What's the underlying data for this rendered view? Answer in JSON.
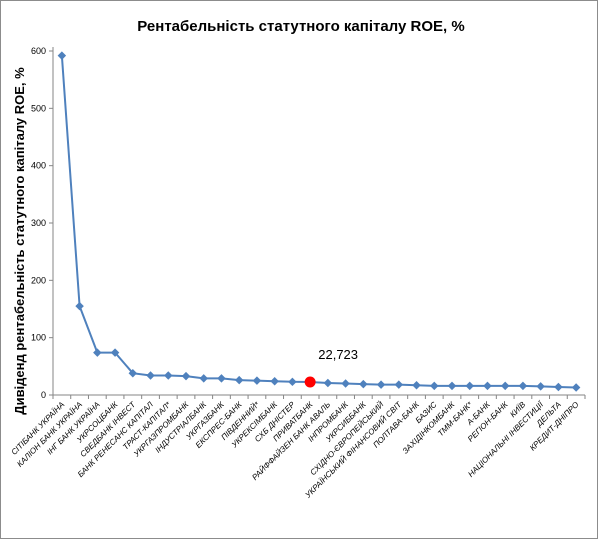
{
  "chart_data": {
    "type": "line",
    "title": "Рентабельність статутного капіталу ROE, %",
    "xlabel": "",
    "ylabel": "Дивіденд рентабельність статутного капіталу ROE, %",
    "ylim": [
      0,
      600
    ],
    "yticks": [
      0,
      100,
      200,
      300,
      400,
      500,
      600
    ],
    "grid": false,
    "legend": "none",
    "series_color": "#4F81BD",
    "highlight_color": "#FF0000",
    "categories": [
      "СІТІБАНК УКРАЇНА",
      "КАЛІОН БАНК УКРАЇНА",
      "ІНГ БАНК УКРАЇНА",
      "УКРСОЦБАНК",
      "СВЕДБАНК ІНВЕСТ",
      "БАНК РЕНЕСАНС КАПІТАЛ",
      "ТРАСТ-КАПІТАЛ*",
      "УКРГАЗПРОМБАНК",
      "ІНДУСТРІАЛБАНК",
      "УКРГАЗБАНК",
      "ЕКСПРЕС-БАНК",
      "ПІВДЕННИЙ*",
      "УКРЕКСІМБАНК",
      "СХБ ДНІСТЕР",
      "ПРИВАТБАНК",
      "РАЙФФАЙЗЕН БАНК АВАЛЬ",
      "ІНПРОМБАНК",
      "УКРСИББАНК",
      "СХІДНО-ЄВРОПЕЙСЬКИЙ",
      "УКРАЇНСЬКИЙ ФІНАНСОВИЙ СВІТ",
      "ПОЛТАВА-БАНК",
      "БАЗИС",
      "ЗАХІДІНКОМБАНК",
      "ТММ-БАНК*",
      "А-БАНК",
      "РЕГІОН-БАНК",
      "КИЇВ",
      "НАЦІОНАЛЬНІ ІНВЕСТИЦІЇ",
      "ДЕЛЬТА",
      "КРЕДИТ-ДНІПРО"
    ],
    "values": [
      592,
      155,
      74,
      74,
      38,
      34,
      34,
      33,
      29,
      29,
      26,
      25,
      24,
      23,
      22.723,
      21,
      20,
      19,
      18,
      18,
      17,
      16,
      16,
      16,
      16,
      16,
      16,
      15,
      14,
      13
    ],
    "highlight_index": 14,
    "annotations": [
      {
        "index": 14,
        "text": "22,723"
      }
    ]
  }
}
